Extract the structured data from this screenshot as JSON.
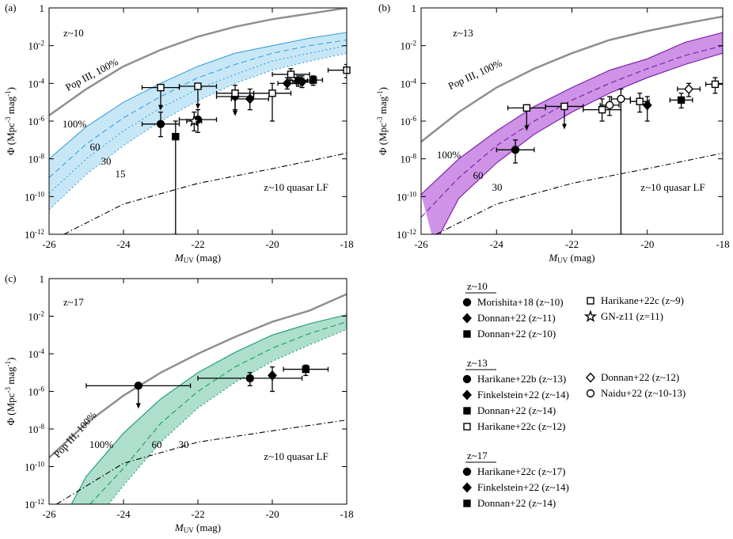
{
  "chart_data": [
    {
      "type": "line",
      "panel_label": "(a)",
      "title": "z~10",
      "legend_title": "z~10",
      "xlabel": "MUV (mag)",
      "ylabel": "Φ (Mpc-3 mag-1)",
      "xlim": [
        -26,
        -18
      ],
      "ylim": [
        1e-12,
        1
      ],
      "log_y": true,
      "xticks": [
        -26,
        -24,
        -22,
        -20,
        -18
      ],
      "yticks": [
        {
          "value": 1e-12,
          "label": "10-12"
        },
        {
          "value": 1e-10,
          "label": "10-10"
        },
        {
          "value": 1e-08,
          "label": "10-8"
        },
        {
          "value": 1e-06,
          "label": "10-6"
        },
        {
          "value": 0.0001,
          "label": "10-4"
        },
        {
          "value": 0.01,
          "label": "10-2"
        },
        1
      ],
      "band_color": "#bde3f6",
      "curves": [
        {
          "label": "Pop III, 100%",
          "color": "#8f8f8f",
          "dash": "solid",
          "x": [
            -26,
            -25,
            -24,
            -23,
            -22,
            -21,
            -20,
            -19,
            -18
          ],
          "values": [
            2e-06,
            5e-05,
            0.0008,
            0.006,
            0.03,
            0.1,
            0.25,
            0.5,
            1
          ]
        },
        {
          "label": "100%",
          "color": "#3fa0d8",
          "dash": "solid",
          "x": [
            -26,
            -25,
            -24,
            -23,
            -22,
            -21,
            -20,
            -19,
            -18
          ],
          "values": [
            1e-08,
            5e-07,
            1e-05,
            0.0001,
            0.0008,
            0.004,
            0.01,
            0.025,
            0.05
          ]
        },
        {
          "label": "60",
          "color": "#3fa0d8",
          "dash": "dashed",
          "x": [
            -26,
            -25,
            -24,
            -23,
            -22,
            -21,
            -20,
            -19,
            -18
          ],
          "values": [
            1e-09,
            6e-08,
            1.5e-06,
            2e-05,
            0.0002,
            0.001,
            0.004,
            0.01,
            0.02
          ]
        },
        {
          "label": "30",
          "color": "#3fa0d8",
          "dash": "dotted",
          "x": [
            -26,
            -25,
            -24,
            -23,
            -22,
            -21,
            -20,
            -19,
            -18
          ],
          "values": [
            1.5e-10,
            1e-08,
            3e-07,
            5e-06,
            5e-05,
            0.0003,
            0.0015,
            0.004,
            0.01
          ]
        },
        {
          "label": "15",
          "color": "#3fa0d8",
          "dash": "dotted",
          "x": [
            -26,
            -25,
            -24,
            -23,
            -22,
            -21,
            -20,
            -19,
            -18
          ],
          "values": [
            2e-11,
            1.5e-09,
            5e-08,
            1e-06,
            1.2e-05,
            0.0001,
            0.0005,
            0.0015,
            0.004
          ]
        },
        {
          "label": "z~10 quasar LF",
          "color": "#000000",
          "dash": "dashdot",
          "x": [
            -25.6,
            -24,
            -22,
            -20,
            -18
          ],
          "values": [
            1e-12,
            4e-11,
            5e-10,
            3e-09,
            2e-08
          ]
        }
      ],
      "series": [
        {
          "name": "Morishita+18 (z~10)",
          "marker": "circle",
          "filled": true,
          "x": [
            -23,
            -22
          ],
          "values": [
            7e-07,
            1.2e-06
          ],
          "xerr": [
            0.5,
            0.5
          ],
          "ylo": [
            1.5e-07,
            2.5e-07
          ],
          "yhi": [
            3e-06,
            4e-06
          ],
          "limit": [
            false,
            false
          ]
        },
        {
          "name": "Donnan+22 (z~11)",
          "marker": "diamond",
          "filled": true,
          "x": [
            -21,
            -20.6,
            -19.6,
            -19.2
          ],
          "values": [
            2e-05,
            1.5e-05,
            0.0001,
            0.00012
          ],
          "xerr": [
            0.5,
            0.5,
            0.25,
            0.25
          ],
          "ylo": [
            4e-06,
            4e-06,
            5e-05,
            6e-05
          ],
          "yhi": [
            8e-05,
            5e-05,
            0.0002,
            0.00025
          ],
          "limit": [
            false,
            false,
            false,
            false
          ]
        },
        {
          "name": "Donnan+22 (z~10)",
          "marker": "square",
          "filled": true,
          "x": [
            -22.6,
            -19.3,
            -18.9
          ],
          "values": [
            1.5e-07,
            0.00014,
            0.00015
          ],
          "xerr": [
            null,
            0.25,
            0.25
          ],
          "ylo": [
            1e-12,
            7e-05,
            8e-05
          ],
          "yhi": [
            1e-06,
            0.00025,
            0.00025
          ],
          "limit": [
            false,
            false,
            false
          ]
        },
        {
          "name": "Harikane+22c (z~9)",
          "marker": "square",
          "filled": false,
          "x": [
            -23,
            -22,
            -21,
            -20,
            -19.5,
            -18
          ],
          "values": [
            6e-05,
            7e-05,
            3e-05,
            3e-05,
            0.0003,
            0.0005
          ],
          "xerr": [
            0.5,
            0.5,
            0.5,
            0.5,
            0.5,
            0.5
          ],
          "ylo": [
            null,
            null,
            null,
            1e-06,
            0.00015,
            0.0002
          ],
          "yhi": [
            null,
            null,
            null,
            0.0001,
            0.0006,
            0.001
          ],
          "limit": [
            true,
            true,
            true,
            false,
            false,
            false
          ]
        },
        {
          "name": "GN-z11 (z=11)",
          "marker": "star",
          "filled": false,
          "x": [
            -22.1
          ],
          "values": [
            1e-06
          ],
          "xerr": [
            0.2
          ],
          "ylo": [
            3e-07
          ],
          "yhi": [
            3e-06
          ],
          "limit": [
            false
          ]
        }
      ]
    },
    {
      "type": "line",
      "panel_label": "(b)",
      "title": "z~13",
      "legend_title": "z~13",
      "xlabel": "MUV (mag)",
      "ylabel": "Φ (Mpc-3 mag-1)",
      "xlim": [
        -26,
        -18
      ],
      "ylim": [
        1e-12,
        1
      ],
      "log_y": true,
      "xticks": [
        -26,
        -24,
        -22,
        -20,
        -18
      ],
      "yticks": [
        {
          "value": 1e-12,
          "label": "10-12"
        },
        {
          "value": 1e-10,
          "label": "10-10"
        },
        {
          "value": 1e-08,
          "label": "10-8"
        },
        {
          "value": 1e-06,
          "label": "10-6"
        },
        {
          "value": 0.0001,
          "label": "10-4"
        },
        {
          "value": 0.01,
          "label": "10-2"
        },
        1
      ],
      "band_color": "#c57fe3",
      "curves": [
        {
          "label": "Pop III, 100%",
          "color": "#8f8f8f",
          "dash": "solid",
          "x": [
            -26,
            -25,
            -24,
            -23,
            -22,
            -21,
            -20,
            -19,
            -18
          ],
          "values": [
            8e-08,
            3e-06,
            6e-05,
            0.0006,
            0.004,
            0.02,
            0.06,
            0.15,
            0.35
          ]
        },
        {
          "label": "100%",
          "color": "#7a1ca0",
          "dash": "solid",
          "x": [
            -26,
            -25,
            -24,
            -23,
            -22,
            -21,
            -20,
            -19,
            -18
          ],
          "values": [
            1.3e-10,
            1e-08,
            3e-07,
            6e-06,
            6e-05,
            0.0005,
            0.002,
            0.015,
            0.05
          ]
        },
        {
          "label": "60",
          "color": "#7a1ca0",
          "dash": "dashed",
          "x": [
            -26,
            -25,
            -24,
            -23,
            -22,
            -21,
            -20,
            -19,
            -18
          ],
          "values": [
            8e-12,
            1e-09,
            5e-08,
            1e-06,
            1.3e-05,
            0.0001,
            0.0006,
            0.003,
            0.01
          ]
        },
        {
          "label": "30",
          "color": "#7a1ca0",
          "dash": "solid",
          "x": [
            -25.5,
            -25,
            -24,
            -23,
            -22,
            -21,
            -20,
            -19,
            -18
          ],
          "values": [
            1e-12,
            8e-11,
            6e-09,
            2e-07,
            3e-06,
            3e-05,
            0.0002,
            0.001,
            0.004
          ]
        },
        {
          "label": "z~10 quasar LF",
          "color": "#000000",
          "dash": "dashdot",
          "x": [
            -25.6,
            -24,
            -22,
            -20,
            -18
          ],
          "values": [
            1e-12,
            4e-11,
            5e-10,
            3e-09,
            2e-08
          ]
        }
      ],
      "series": [
        {
          "name": "Harikane+22b (z~13)",
          "marker": "circle",
          "filled": true,
          "x": [
            -23.5
          ],
          "values": [
            3e-08
          ],
          "xerr": [
            0.5
          ],
          "ylo": [
            6e-09
          ],
          "yhi": [
            1e-07
          ],
          "limit": [
            false
          ]
        },
        {
          "name": "Finkelstein+22 (z~14)",
          "marker": "diamond",
          "filled": true,
          "x": [
            -20
          ],
          "values": [
            7e-06
          ],
          "xerr": [
            null
          ],
          "ylo": [
            1e-06
          ],
          "yhi": [
            2e-05
          ],
          "limit": [
            false
          ]
        },
        {
          "name": "Donnan+22 (z~14)",
          "marker": "square",
          "filled": true,
          "x": [
            -19.1
          ],
          "values": [
            1.3e-05
          ],
          "xerr": [
            0.3
          ],
          "ylo": [
            5e-06
          ],
          "yhi": [
            3e-05
          ],
          "limit": [
            false
          ]
        },
        {
          "name": "Harikane+22c (z~12)",
          "marker": "square",
          "filled": false,
          "x": [
            -23.2,
            -22.2,
            -21.2,
            -20.2,
            -18.2
          ],
          "values": [
            5e-06,
            6e-06,
            4e-06,
            1.1e-05,
            9e-05
          ],
          "xerr": [
            0.5,
            0.5,
            0.5,
            0.25,
            0.25
          ],
          "ylo": [
            null,
            null,
            1e-06,
            3e-06,
            3e-05
          ],
          "yhi": [
            null,
            null,
            1.5e-05,
            3e-05,
            0.0002
          ],
          "limit": [
            true,
            true,
            false,
            false,
            false
          ]
        },
        {
          "name": "Donnan+22 (z~12)",
          "marker": "diamond",
          "filled": false,
          "x": [
            -18.9
          ],
          "values": [
            5e-05
          ],
          "xerr": [
            0.3
          ],
          "ylo": [
            2e-05
          ],
          "yhi": [
            0.0001
          ],
          "limit": [
            false
          ]
        },
        {
          "name": "Naidu+22 (z~10-13)",
          "marker": "circle",
          "filled": false,
          "x": [
            -21,
            -20.7
          ],
          "values": [
            7e-06,
            1.5e-05
          ],
          "xerr": [
            0.25,
            0.25
          ],
          "ylo": [
            2e-06,
            1e-12
          ],
          "yhi": [
            2e-05,
            5e-05
          ],
          "limit": [
            false,
            false
          ]
        }
      ]
    },
    {
      "type": "line",
      "panel_label": "(c)",
      "title": "z~17",
      "legend_title": "z~17",
      "xlabel": "MUV (mag)",
      "ylabel": "Φ (Mpc-3 mag-1)",
      "xlim": [
        -26,
        -18
      ],
      "ylim": [
        1e-12,
        1
      ],
      "log_y": true,
      "xticks": [
        -26,
        -24,
        -22,
        -20,
        -18
      ],
      "yticks": [
        {
          "value": 1e-12,
          "label": "10-12"
        },
        {
          "value": 1e-10,
          "label": "10-10"
        },
        {
          "value": 1e-08,
          "label": "10-8"
        },
        {
          "value": 1e-06,
          "label": "10-6"
        },
        {
          "value": 0.0001,
          "label": "10-4"
        },
        {
          "value": 0.01,
          "label": "10-2"
        },
        1
      ],
      "band_color": "#9fd9c3",
      "curves": [
        {
          "label": "Pop III, 100%",
          "color": "#8f8f8f",
          "dash": "solid",
          "x": [
            -26,
            -25,
            -24,
            -23,
            -22,
            -21,
            -20,
            -19,
            -18
          ],
          "values": [
            3e-10,
            2e-08,
            6e-07,
            1e-05,
            0.0001,
            0.0008,
            0.005,
            0.02,
            0.15
          ]
        },
        {
          "label": "100%",
          "color": "#1b9a6c",
          "dash": "solid",
          "x": [
            -25.4,
            -25,
            -24,
            -23,
            -22,
            -21,
            -20,
            -19,
            -18
          ],
          "values": [
            1e-12,
            3e-11,
            6e-09,
            4e-07,
            1e-05,
            0.00012,
            0.001,
            0.004,
            0.012
          ]
        },
        {
          "label": "60",
          "color": "#1b9a6c",
          "dash": "dashed",
          "x": [
            -24.9,
            -24,
            -23,
            -22,
            -21,
            -20,
            -19,
            -18
          ],
          "values": [
            1e-12,
            8e-11,
            2e-08,
            1e-06,
            2e-05,
            0.0002,
            0.0012,
            0.005
          ]
        },
        {
          "label": "30",
          "color": "#1b9a6c",
          "dash": "dotted",
          "x": [
            -24.4,
            -24,
            -23,
            -22,
            -21,
            -20,
            -19,
            -18
          ],
          "values": [
            1e-12,
            1e-11,
            2e-09,
            1.3e-07,
            3e-06,
            4e-05,
            0.0003,
            0.002
          ]
        },
        {
          "label": "z~10 quasar LF",
          "color": "#000000",
          "dash": "dashdot",
          "x": [
            -25.8,
            -24,
            -22,
            -20,
            -18
          ],
          "values": [
            1e-12,
            1.5e-10,
            2e-09,
            8e-09,
            3e-08
          ]
        }
      ],
      "series": [
        {
          "name": "Harikane+22c (z~17)",
          "marker": "circle",
          "filled": true,
          "x": [
            -23.6,
            -20.6
          ],
          "values": [
            2e-06,
            5e-06
          ],
          "xerr": [
            1.4,
            1.4
          ],
          "ylo": [
            null,
            2e-06
          ],
          "yhi": [
            null,
            1e-05
          ],
          "limit": [
            true,
            false
          ]
        },
        {
          "name": "Finkelstein+22 (z~14)",
          "marker": "diamond",
          "filled": true,
          "x": [
            -20
          ],
          "values": [
            7e-06
          ],
          "xerr": [
            null
          ],
          "ylo": [
            1e-06
          ],
          "yhi": [
            2e-05
          ],
          "limit": [
            false
          ]
        },
        {
          "name": "Donnan+22 (z~14)",
          "marker": "square",
          "filled": true,
          "x": [
            -19.1
          ],
          "values": [
            1.5e-05
          ],
          "xerr": [
            0.6
          ],
          "ylo": [
            7e-06
          ],
          "yhi": [
            2.5e-05
          ],
          "limit": [
            false
          ]
        }
      ]
    }
  ]
}
